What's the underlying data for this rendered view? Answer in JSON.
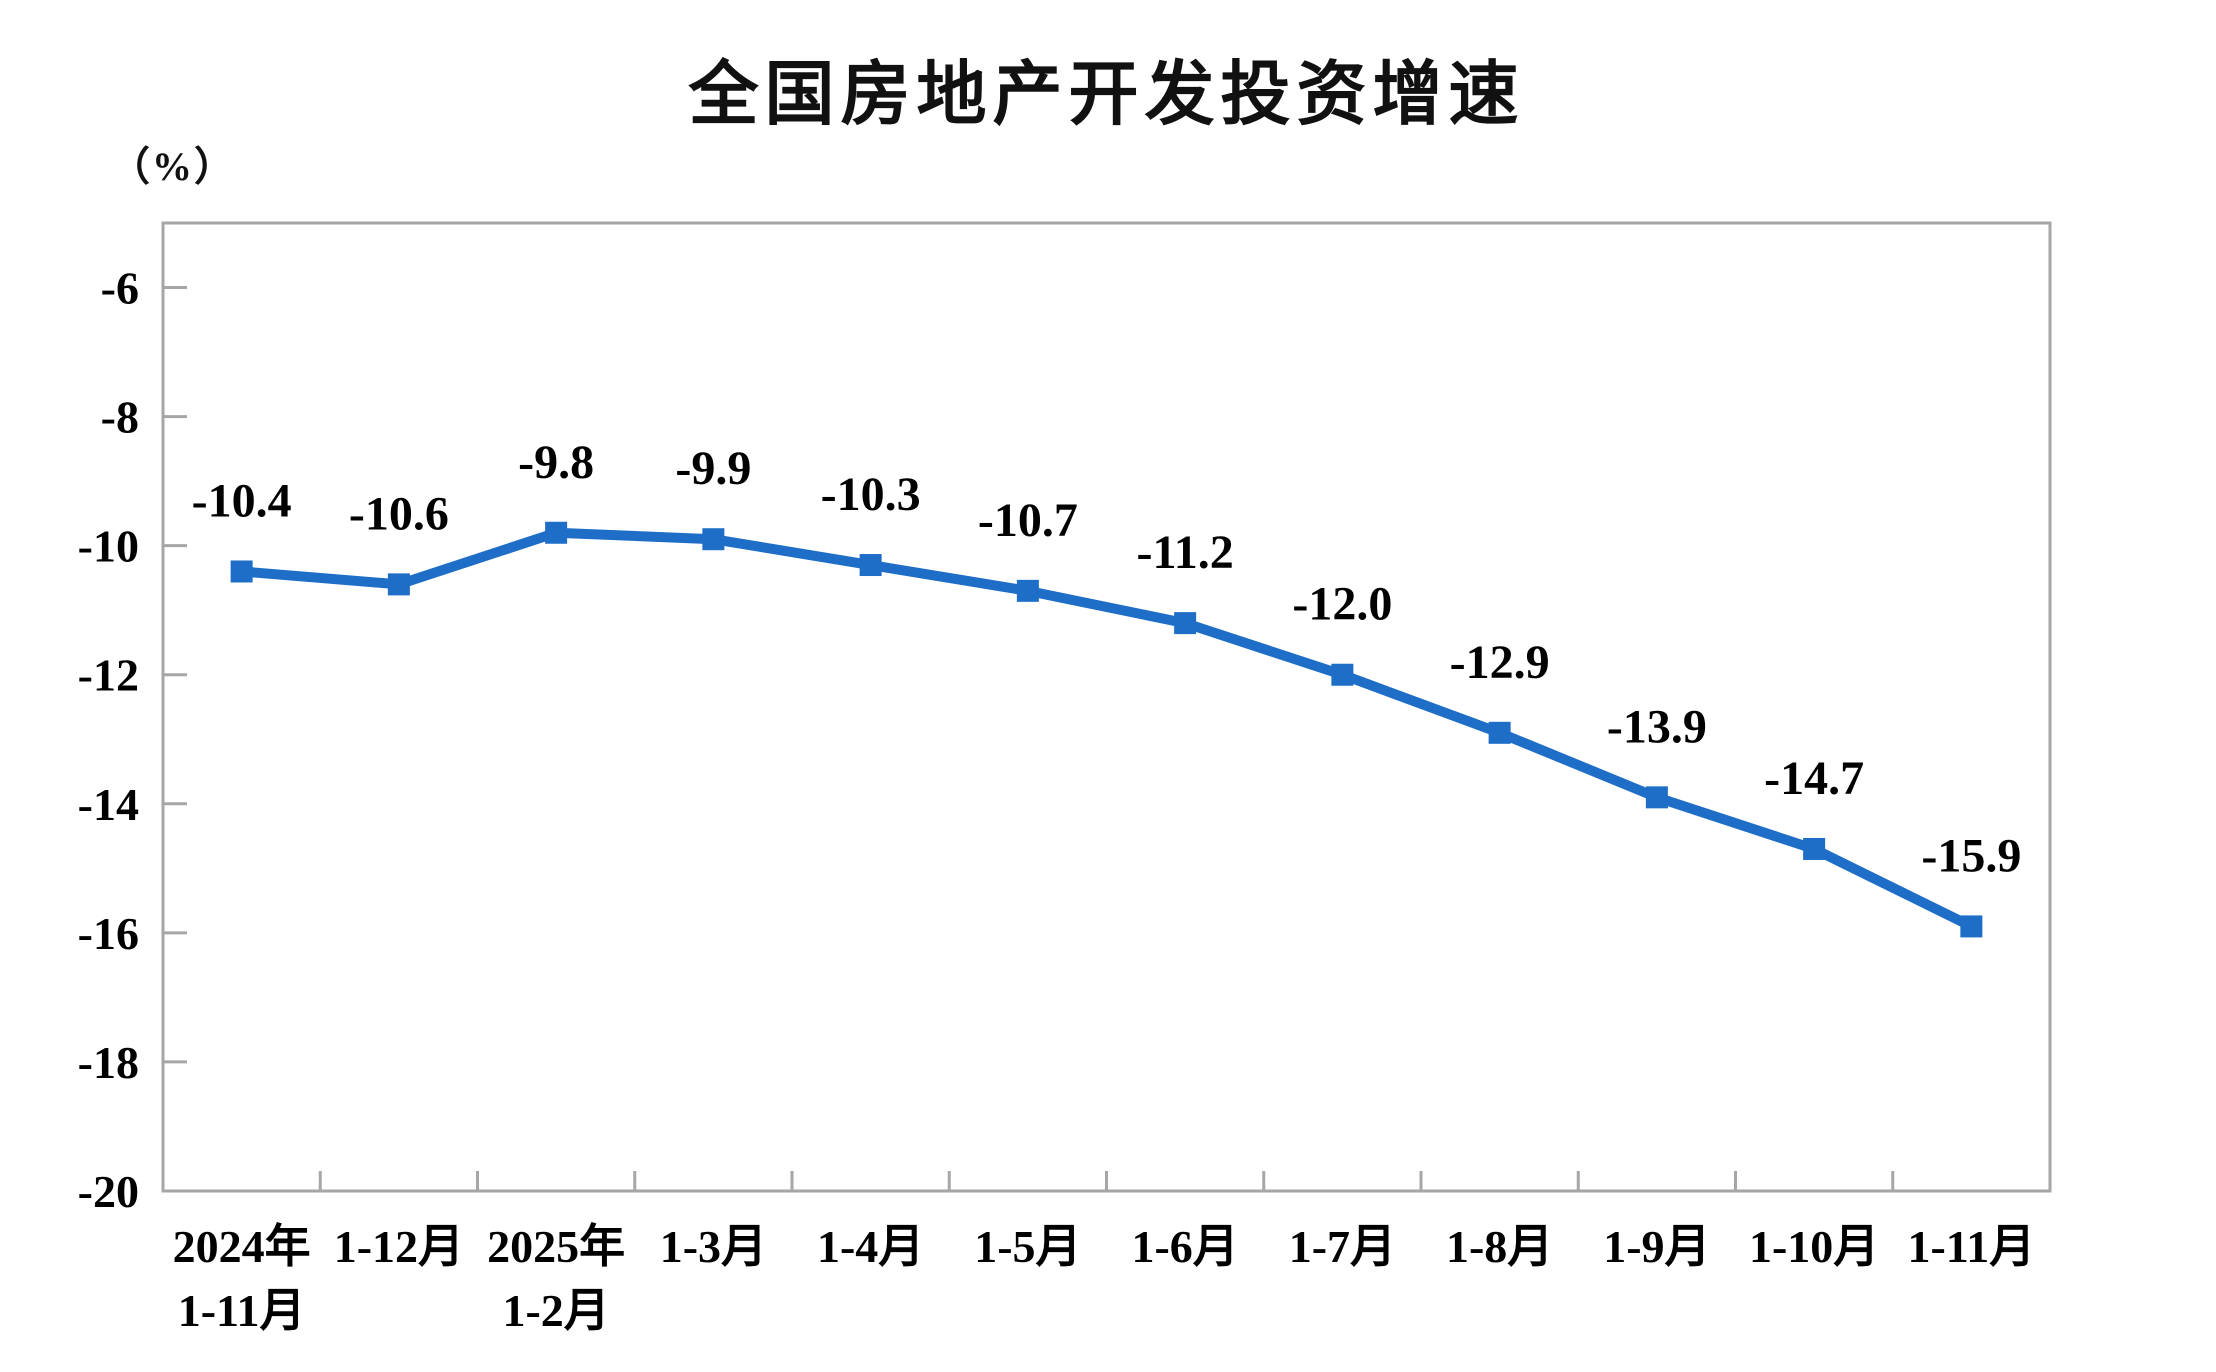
{
  "header": {
    "title": "全国房地产开发投资增速",
    "y_axis_unit": "（%）"
  },
  "chart_data": {
    "type": "line",
    "title": "全国房地产开发投资增速",
    "xlabel": "",
    "ylabel": "（%）",
    "legend_position": "none",
    "grid": false,
    "ylim": [
      -20,
      -5
    ],
    "yticks": [
      -6,
      -8,
      -10,
      -12,
      -14,
      -16,
      -18,
      -20
    ],
    "categories": [
      [
        "2024年",
        "1-11月"
      ],
      [
        "1-12月"
      ],
      [
        "2025年",
        "1-2月"
      ],
      [
        "1-3月"
      ],
      [
        "1-4月"
      ],
      [
        "1-5月"
      ],
      [
        "1-6月"
      ],
      [
        "1-7月"
      ],
      [
        "1-8月"
      ],
      [
        "1-9月"
      ],
      [
        "1-10月"
      ],
      [
        "1-11月"
      ]
    ],
    "series": [
      {
        "name": "全国房地产开发投资增速",
        "values": [
          -10.4,
          -10.6,
          -9.8,
          -9.9,
          -10.3,
          -10.7,
          -11.2,
          -12.0,
          -12.9,
          -13.9,
          -14.7,
          -15.9
        ],
        "data_labels": [
          "-10.4",
          "-10.6",
          "-9.8",
          "-9.9",
          "-10.3",
          "-10.7",
          "-11.2",
          "-12.0",
          "-12.9",
          "-13.9",
          "-14.7",
          "-15.9"
        ],
        "color": "#1e6ec8"
      }
    ],
    "marker": "square",
    "axis_color": "#a6a6a6",
    "label_color": "#000000"
  }
}
